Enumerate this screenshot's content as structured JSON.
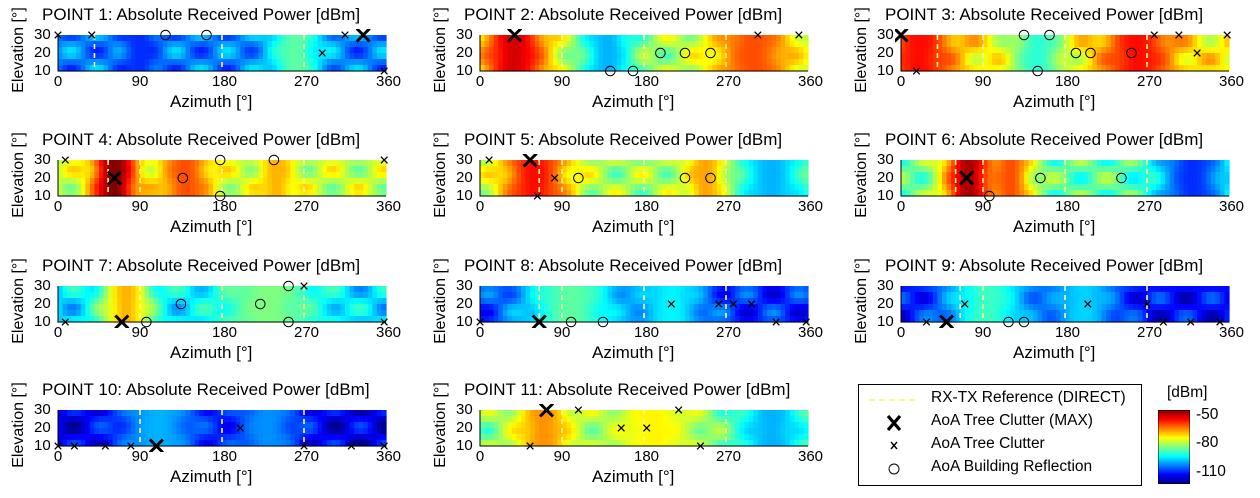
{
  "chart_data": [
    {
      "type": "heatmap",
      "title": "POINT 1: Absolute Received Power [dBm]",
      "xlabel": "Azimuth [°]",
      "ylabel": "Elevation [°]",
      "xlim": [
        0,
        360
      ],
      "ylim": [
        10,
        30
      ],
      "xticks": [
        "0",
        "90",
        "180",
        "270",
        "360"
      ],
      "yticks": [
        "10",
        "20",
        "30"
      ],
      "reference_azimuths": [
        40,
        180,
        270
      ],
      "field_base": -95,
      "hotspots": [
        {
          "az": 90,
          "el": 20,
          "level": -100,
          "width": 20
        },
        {
          "az": 260,
          "el": 20,
          "level": -82,
          "width": 30
        }
      ],
      "aoa_tree_max": [
        {
          "az": 335,
          "el": 30
        }
      ],
      "aoa_tree": [
        {
          "az": 0,
          "el": 30
        },
        {
          "az": 37,
          "el": 30
        },
        {
          "az": 290,
          "el": 20
        },
        {
          "az": 315,
          "el": 30
        },
        {
          "az": 358,
          "el": 10
        }
      ],
      "aoa_building": [
        {
          "az": 118,
          "el": 30
        },
        {
          "az": 163,
          "el": 30
        }
      ]
    },
    {
      "type": "heatmap",
      "title": "POINT 2: Absolute Received Power [dBm]",
      "xlabel": "Azimuth [°]",
      "ylabel": "Elevation [°]",
      "xlim": [
        0,
        360
      ],
      "ylim": [
        10,
        30
      ],
      "xticks": [
        "0",
        "90",
        "180",
        "270",
        "360"
      ],
      "yticks": [
        "10",
        "20",
        "30"
      ],
      "reference_azimuths": [
        90,
        180,
        270
      ],
      "field_base": -78,
      "hotspots": [
        {
          "az": 38,
          "el": 20,
          "level": -55,
          "width": 40
        },
        {
          "az": 300,
          "el": 20,
          "level": -62,
          "width": 50
        },
        {
          "az": 140,
          "el": 20,
          "level": -92,
          "width": 30
        }
      ],
      "aoa_tree_max": [
        {
          "az": 38,
          "el": 30
        }
      ],
      "aoa_tree": [
        {
          "az": 305,
          "el": 30
        },
        {
          "az": 350,
          "el": 30
        }
      ],
      "aoa_building": [
        {
          "az": 143,
          "el": 10
        },
        {
          "az": 168,
          "el": 10
        },
        {
          "az": 198,
          "el": 20
        },
        {
          "az": 225,
          "el": 20
        },
        {
          "az": 253,
          "el": 20
        }
      ]
    },
    {
      "type": "heatmap",
      "title": "POINT 3: Absolute Received Power [dBm]",
      "xlabel": "Azimuth [°]",
      "ylabel": "Elevation [°]",
      "xlim": [
        0,
        360
      ],
      "ylim": [
        10,
        30
      ],
      "xticks": [
        "0",
        "90",
        "180",
        "270",
        "360"
      ],
      "yticks": [
        "10",
        "20",
        "30"
      ],
      "reference_azimuths": [
        40,
        90,
        180,
        270
      ],
      "field_base": -72,
      "hotspots": [
        {
          "az": 20,
          "el": 20,
          "level": -58,
          "width": 40
        },
        {
          "az": 260,
          "el": 20,
          "level": -58,
          "width": 40
        },
        {
          "az": 150,
          "el": 20,
          "level": -85,
          "width": 30
        }
      ],
      "aoa_tree_max": [
        {
          "az": 0,
          "el": 30
        }
      ],
      "aoa_tree": [
        {
          "az": 17,
          "el": 10
        },
        {
          "az": 278,
          "el": 30
        },
        {
          "az": 305,
          "el": 30
        },
        {
          "az": 325,
          "el": 20
        },
        {
          "az": 358,
          "el": 30
        }
      ],
      "aoa_building": [
        {
          "az": 135,
          "el": 30
        },
        {
          "az": 163,
          "el": 30
        },
        {
          "az": 150,
          "el": 10
        },
        {
          "az": 192,
          "el": 20
        },
        {
          "az": 208,
          "el": 20
        },
        {
          "az": 253,
          "el": 20
        }
      ]
    },
    {
      "type": "heatmap",
      "title": "POINT 4: Absolute Received Power [dBm]",
      "xlabel": "Azimuth [°]",
      "ylabel": "Elevation [°]",
      "xlim": [
        0,
        360
      ],
      "ylim": [
        10,
        30
      ],
      "xticks": [
        "0",
        "90",
        "180",
        "270",
        "360"
      ],
      "yticks": [
        "10",
        "20",
        "30"
      ],
      "reference_azimuths": [
        55,
        90,
        180,
        270
      ],
      "field_base": -76,
      "hotspots": [
        {
          "az": 62,
          "el": 20,
          "level": -50,
          "width": 25
        },
        {
          "az": 140,
          "el": 20,
          "level": -62,
          "width": 30
        },
        {
          "az": 240,
          "el": 20,
          "level": -68,
          "width": 20
        }
      ],
      "aoa_tree_max": [
        {
          "az": 62,
          "el": 20
        }
      ],
      "aoa_tree": [
        {
          "az": 8,
          "el": 30
        },
        {
          "az": 358,
          "el": 30
        }
      ],
      "aoa_building": [
        {
          "az": 137,
          "el": 20
        },
        {
          "az": 178,
          "el": 30
        },
        {
          "az": 178,
          "el": 10
        },
        {
          "az": 237,
          "el": 30
        }
      ]
    },
    {
      "type": "heatmap",
      "title": "POINT 5: Absolute Received Power [dBm]",
      "xlabel": "Azimuth [°]",
      "ylabel": "Elevation [°]",
      "xlim": [
        0,
        360
      ],
      "ylim": [
        10,
        30
      ],
      "xticks": [
        "0",
        "90",
        "180",
        "270",
        "360"
      ],
      "yticks": [
        "10",
        "20",
        "30"
      ],
      "reference_azimuths": [
        65,
        90,
        180,
        270
      ],
      "field_base": -78,
      "hotspots": [
        {
          "az": 60,
          "el": 20,
          "level": -58,
          "width": 40
        },
        {
          "az": 250,
          "el": 20,
          "level": -66,
          "width": 25
        },
        {
          "az": 320,
          "el": 20,
          "level": -92,
          "width": 40
        }
      ],
      "aoa_tree_max": [
        {
          "az": 55,
          "el": 30
        }
      ],
      "aoa_tree": [
        {
          "az": 10,
          "el": 30
        },
        {
          "az": 82,
          "el": 20
        },
        {
          "az": 63,
          "el": 10
        }
      ],
      "aoa_building": [
        {
          "az": 108,
          "el": 20
        },
        {
          "az": 225,
          "el": 20
        },
        {
          "az": 253,
          "el": 20
        }
      ]
    },
    {
      "type": "heatmap",
      "title": "POINT 6: Absolute Received Power [dBm]",
      "xlabel": "Azimuth [°]",
      "ylabel": "Elevation [°]",
      "xlim": [
        0,
        360
      ],
      "ylim": [
        10,
        30
      ],
      "xticks": [
        "0",
        "90",
        "180",
        "270",
        "360"
      ],
      "yticks": [
        "10",
        "20",
        "30"
      ],
      "reference_azimuths": [
        60,
        90,
        180,
        270
      ],
      "field_base": -82,
      "hotspots": [
        {
          "az": 75,
          "el": 20,
          "level": -52,
          "width": 30
        },
        {
          "az": 120,
          "el": 20,
          "level": -62,
          "width": 25
        },
        {
          "az": 320,
          "el": 20,
          "level": -100,
          "width": 40
        }
      ],
      "aoa_tree_max": [
        {
          "az": 72,
          "el": 20
        }
      ],
      "aoa_tree": [],
      "aoa_building": [
        {
          "az": 97,
          "el": 10
        },
        {
          "az": 153,
          "el": 20
        },
        {
          "az": 242,
          "el": 20
        }
      ]
    },
    {
      "type": "heatmap",
      "title": "POINT 7: Absolute Received Power [dBm]",
      "xlabel": "Azimuth [°]",
      "ylabel": "Elevation [°]",
      "xlim": [
        0,
        360
      ],
      "ylim": [
        10,
        30
      ],
      "xticks": [
        "0",
        "90",
        "180",
        "270",
        "360"
      ],
      "yticks": [
        "10",
        "20",
        "30"
      ],
      "reference_azimuths": [
        90,
        180,
        270
      ],
      "field_base": -90,
      "hotspots": [
        {
          "az": 75,
          "el": 20,
          "level": -68,
          "width": 30
        },
        {
          "az": 230,
          "el": 20,
          "level": -80,
          "width": 60
        }
      ],
      "aoa_tree_max": [
        {
          "az": 70,
          "el": 10
        }
      ],
      "aoa_tree": [
        {
          "az": 8,
          "el": 10
        },
        {
          "az": 270,
          "el": 30
        },
        {
          "az": 358,
          "el": 10
        }
      ],
      "aoa_building": [
        {
          "az": 97,
          "el": 10
        },
        {
          "az": 135,
          "el": 20
        },
        {
          "az": 222,
          "el": 20
        },
        {
          "az": 253,
          "el": 30
        },
        {
          "az": 253,
          "el": 10
        }
      ]
    },
    {
      "type": "heatmap",
      "title": "POINT 8: Absolute Received Power [dBm]",
      "xlabel": "Azimuth [°]",
      "ylabel": "Elevation [°]",
      "xlim": [
        0,
        360
      ],
      "ylim": [
        10,
        30
      ],
      "xticks": [
        "0",
        "90",
        "180",
        "270",
        "360"
      ],
      "yticks": [
        "10",
        "20",
        "30"
      ],
      "reference_azimuths": [
        65,
        90,
        180,
        270
      ],
      "field_base": -100,
      "hotspots": [
        {
          "az": 100,
          "el": 20,
          "level": -82,
          "width": 60
        },
        {
          "az": 210,
          "el": 20,
          "level": -88,
          "width": 40
        }
      ],
      "aoa_tree_max": [
        {
          "az": 65,
          "el": 10
        }
      ],
      "aoa_tree": [
        {
          "az": 0,
          "el": 10
        },
        {
          "az": 210,
          "el": 20
        },
        {
          "az": 262,
          "el": 20
        },
        {
          "az": 278,
          "el": 20
        },
        {
          "az": 298,
          "el": 20
        },
        {
          "az": 325,
          "el": 10
        },
        {
          "az": 358,
          "el": 10
        }
      ],
      "aoa_building": [
        {
          "az": 100,
          "el": 10
        },
        {
          "az": 135,
          "el": 10
        }
      ]
    },
    {
      "type": "heatmap",
      "title": "POINT 9: Absolute Received Power [dBm]",
      "xlabel": "Azimuth [°]",
      "ylabel": "Elevation [°]",
      "xlim": [
        0,
        360
      ],
      "ylim": [
        10,
        30
      ],
      "xticks": [
        "0",
        "90",
        "180",
        "270",
        "360"
      ],
      "yticks": [
        "10",
        "20",
        "30"
      ],
      "reference_azimuths": [
        65,
        90,
        180,
        270
      ],
      "field_base": -102,
      "hotspots": [
        {
          "az": 95,
          "el": 20,
          "level": -84,
          "width": 50
        },
        {
          "az": 200,
          "el": 20,
          "level": -90,
          "width": 40
        }
      ],
      "aoa_tree_max": [
        {
          "az": 50,
          "el": 10
        }
      ],
      "aoa_tree": [
        {
          "az": 28,
          "el": 10
        },
        {
          "az": 70,
          "el": 20
        },
        {
          "az": 205,
          "el": 20
        },
        {
          "az": 270,
          "el": 20
        },
        {
          "az": 288,
          "el": 10
        },
        {
          "az": 318,
          "el": 10
        },
        {
          "az": 350,
          "el": 10
        }
      ],
      "aoa_building": [
        {
          "az": 118,
          "el": 10
        },
        {
          "az": 135,
          "el": 10
        }
      ]
    },
    {
      "type": "heatmap",
      "title": "POINT 10: Absolute Received Power [dBm]",
      "xlabel": "Azimuth [°]",
      "ylabel": "Elevation [°]",
      "xlim": [
        0,
        360
      ],
      "ylim": [
        10,
        30
      ],
      "xticks": [
        "0",
        "90",
        "180",
        "270",
        "360"
      ],
      "yticks": [
        "10",
        "20",
        "30"
      ],
      "reference_azimuths": [
        90,
        180,
        270
      ],
      "field_base": -104,
      "hotspots": [
        {
          "az": 110,
          "el": 20,
          "level": -92,
          "width": 50
        },
        {
          "az": 230,
          "el": 20,
          "level": -94,
          "width": 40
        }
      ],
      "aoa_tree_max": [
        {
          "az": 108,
          "el": 10
        }
      ],
      "aoa_tree": [
        {
          "az": 0,
          "el": 10
        },
        {
          "az": 18,
          "el": 10
        },
        {
          "az": 52,
          "el": 10
        },
        {
          "az": 80,
          "el": 10
        },
        {
          "az": 200,
          "el": 20
        },
        {
          "az": 270,
          "el": 10
        },
        {
          "az": 322,
          "el": 10
        },
        {
          "az": 358,
          "el": 10
        }
      ],
      "aoa_building": []
    },
    {
      "type": "heatmap",
      "title": "POINT 11: Absolute Received Power [dBm]",
      "xlabel": "Azimuth [°]",
      "ylabel": "Elevation [°]",
      "xlim": [
        0,
        360
      ],
      "ylim": [
        10,
        30
      ],
      "xticks": [
        "0",
        "90",
        "180",
        "270",
        "360"
      ],
      "yticks": [
        "10",
        "20",
        "30"
      ],
      "reference_azimuths": [
        90,
        180,
        270
      ],
      "field_base": -80,
      "hotspots": [
        {
          "az": 70,
          "el": 20,
          "level": -66,
          "width": 35
        },
        {
          "az": 190,
          "el": 20,
          "level": -72,
          "width": 50
        },
        {
          "az": 320,
          "el": 20,
          "level": -92,
          "width": 40
        }
      ],
      "aoa_tree_max": [
        {
          "az": 73,
          "el": 30
        }
      ],
      "aoa_tree": [
        {
          "az": 55,
          "el": 10
        },
        {
          "az": 108,
          "el": 30
        },
        {
          "az": 155,
          "el": 20
        },
        {
          "az": 183,
          "el": 20
        },
        {
          "az": 218,
          "el": 30
        },
        {
          "az": 242,
          "el": 10
        }
      ],
      "aoa_building": []
    }
  ],
  "legend": {
    "items": [
      {
        "label": "RX-TX Reference (DIRECT)",
        "marker": "dashed-line",
        "color": "#FFF68F"
      },
      {
        "label": "AoA Tree Clutter (MAX)",
        "marker": "big-x",
        "color": "#000000"
      },
      {
        "label": "AoA Tree Clutter",
        "marker": "small-x",
        "color": "#000000"
      },
      {
        "label": "AoA Building Reflection",
        "marker": "circle",
        "color": "#000000"
      }
    ]
  },
  "colorbar": {
    "title": "[dBm]",
    "ticks": [
      "-50",
      "-80",
      "-110"
    ],
    "range": [
      -110,
      -50
    ],
    "colormap": "jet"
  }
}
